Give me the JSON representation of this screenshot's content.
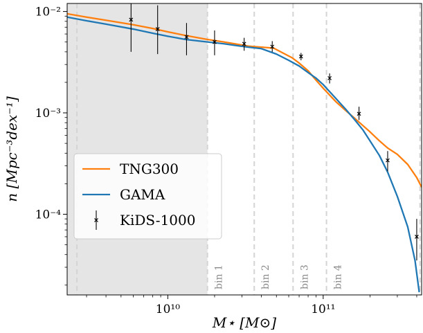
{
  "chart_data": {
    "type": "line",
    "xlabel": "M⋆ [M⊙]",
    "ylabel": "n [Mpc⁻³dex⁻¹]",
    "x_scale": "log",
    "y_scale": "log",
    "xlim": [
      2250000000.0,
      430000000000.0
    ],
    "ylim": [
      1.6e-05,
      0.012
    ],
    "x_ticks": [
      {
        "value": 10000000000.0,
        "label": "10¹⁰"
      },
      {
        "value": 100000000000.0,
        "label": "10¹¹"
      }
    ],
    "y_ticks": [
      {
        "value": 0.01,
        "label": "10⁻²"
      },
      {
        "value": 0.001,
        "label": "10⁻³"
      },
      {
        "value": 0.0001,
        "label": "10⁻⁴"
      }
    ],
    "shaded_region": {
      "from": 2250000000.0,
      "to": 18000000000.0
    },
    "vertical_lines": [
      2600000000.0,
      18000000000.0,
      36000000000.0,
      64000000000.0,
      105000000000.0,
      420000000000.0
    ],
    "bin_labels": [
      {
        "label": "bin 1",
        "x": 18500000000.0
      },
      {
        "label": "bin 2",
        "x": 37000000000.0
      },
      {
        "label": "bin 3",
        "x": 66000000000.0
      },
      {
        "label": "bin 4",
        "x": 108000000000.0
      }
    ],
    "series": [
      {
        "name": "TNG300",
        "color": "#ff7f0e",
        "style": "line",
        "x": [
          2250000000.0,
          3000000000.0,
          4000000000.0,
          6000000000.0,
          8000000000.0,
          10000000000.0,
          13000000000.0,
          18000000000.0,
          23000000000.0,
          28000000000.0,
          33000000000.0,
          40000000000.0,
          48000000000.0,
          55000000000.0,
          63000000000.0,
          70000000000.0,
          80000000000.0,
          90000000000.0,
          100000000000.0,
          120000000000.0,
          140000000000.0,
          160000000000.0,
          180000000000.0,
          200000000000.0,
          230000000000.0,
          260000000000.0,
          300000000000.0,
          350000000000.0,
          400000000000.0,
          430000000000.0
        ],
        "y": [
          0.0095,
          0.0088,
          0.0082,
          0.0074,
          0.0068,
          0.0063,
          0.0058,
          0.0053,
          0.005,
          0.00475,
          0.00455,
          0.00445,
          0.00435,
          0.0039,
          0.0035,
          0.0031,
          0.0026,
          0.0021,
          0.00175,
          0.0013,
          0.00105,
          0.00088,
          0.00075,
          0.00065,
          0.00053,
          0.00045,
          0.00039,
          0.00031,
          0.00023,
          0.000185
        ]
      },
      {
        "name": "GAMA",
        "color": "#1f77b4",
        "style": "line",
        "x": [
          2250000000.0,
          3000000000.0,
          4000000000.0,
          6000000000.0,
          8000000000.0,
          10000000000.0,
          13000000000.0,
          18000000000.0,
          23000000000.0,
          28000000000.0,
          33000000000.0,
          40000000000.0,
          50000000000.0,
          60000000000.0,
          70000000000.0,
          80000000000.0,
          90000000000.0,
          100000000000.0,
          120000000000.0,
          140000000000.0,
          160000000000.0,
          180000000000.0,
          200000000000.0,
          230000000000.0,
          260000000000.0,
          300000000000.0,
          350000000000.0,
          390000000000.0,
          415000000000.0
        ],
        "y": [
          0.0088,
          0.0081,
          0.0075,
          0.0067,
          0.0061,
          0.0057,
          0.0053,
          0.005,
          0.0048,
          0.0046,
          0.00445,
          0.0043,
          0.0038,
          0.0033,
          0.0029,
          0.0025,
          0.0022,
          0.0019,
          0.0014,
          0.00108,
          0.00085,
          0.00068,
          0.00053,
          0.00038,
          0.00026,
          0.00015,
          7.5e-05,
          3.5e-05,
          1.7e-05
        ]
      },
      {
        "name": "KiDS-1000",
        "color": "#000000",
        "style": "errorbar",
        "x": [
          5800000000.0,
          8600000000.0,
          13200000000.0,
          20000000000.0,
          31000000000.0,
          47000000000.0,
          72000000000.0,
          110000000000.0,
          170000000000.0,
          260000000000.0,
          400000000000.0
        ],
        "y": [
          0.0083,
          0.0067,
          0.0056,
          0.005,
          0.0048,
          0.0045,
          0.0036,
          0.0022,
          0.00098,
          0.00034,
          6e-05
        ],
        "y_low": [
          0.004,
          0.0038,
          0.0037,
          0.0037,
          0.0041,
          0.004,
          0.0033,
          0.00195,
          0.00085,
          0.000265,
          3.5e-05
        ],
        "y_high": [
          0.015,
          0.0115,
          0.0077,
          0.0065,
          0.0055,
          0.0051,
          0.0039,
          0.00245,
          0.00115,
          0.00042,
          9e-05
        ]
      }
    ],
    "legend": {
      "placement": "lower-left",
      "entries": [
        "TNG300",
        "GAMA",
        "KiDS-1000"
      ]
    }
  }
}
